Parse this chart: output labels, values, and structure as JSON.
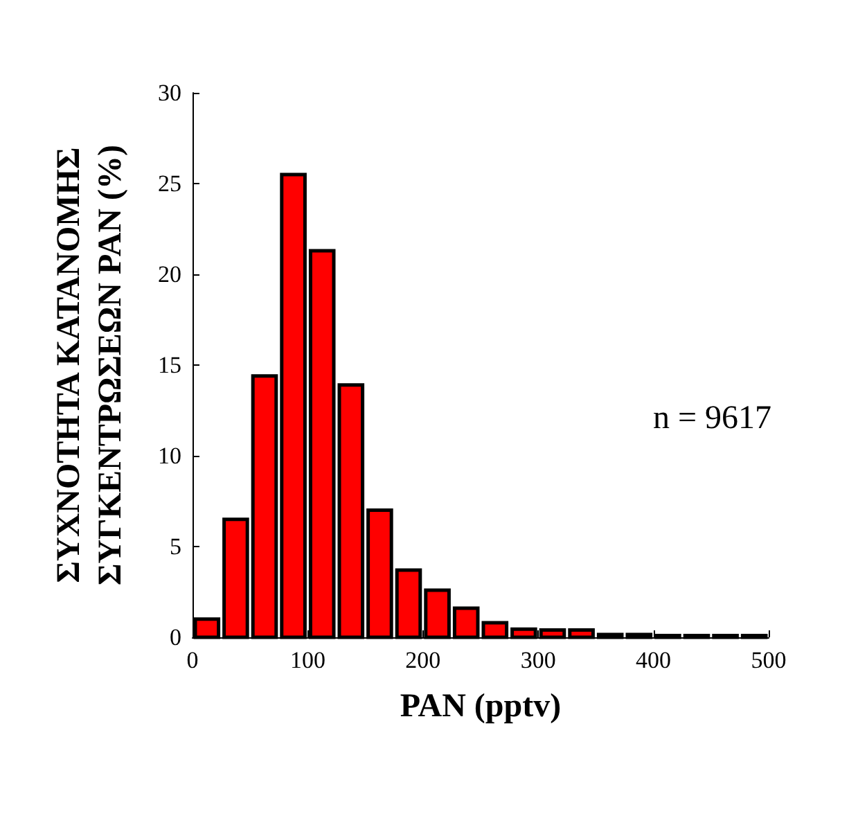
{
  "chart_data": {
    "type": "histogram",
    "xlabel": "PAN (pptv)",
    "ylabel": "ΣΥΧΝΟΤΗΤΑ ΚΑΤΑΝΟΜΗΣ\nΣΥΓΚΕΝΤΡΩΣΕΩΝ PAN (%)",
    "bins": [
      0,
      25,
      50,
      75,
      100,
      125,
      150,
      175,
      200,
      225,
      250,
      275,
      300,
      325,
      350,
      375,
      400,
      425,
      450,
      475,
      500
    ],
    "values": [
      1.0,
      6.5,
      14.4,
      25.5,
      21.3,
      13.9,
      7.0,
      3.7,
      2.6,
      1.6,
      0.8,
      0.45,
      0.4,
      0.4,
      0.15,
      0.15,
      0.1,
      0.1,
      0.1,
      0.1
    ],
    "color": "#ff0000",
    "xlim": [
      0,
      500
    ],
    "xticks": [
      0,
      100,
      200,
      300,
      400,
      500
    ],
    "ylim": [
      0,
      30
    ],
    "yticks": [
      0,
      5,
      10,
      15,
      20,
      25,
      30
    ],
    "annotations": [
      "n = 9617"
    ],
    "grid": false
  }
}
